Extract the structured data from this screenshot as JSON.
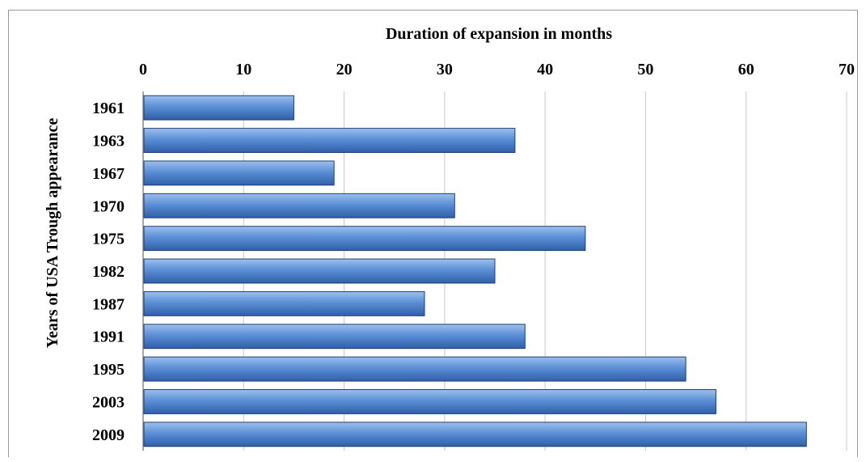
{
  "chart_data": {
    "type": "bar",
    "orientation": "horizontal",
    "title": "",
    "xlabel": "Duration of expansion in months",
    "ylabel": "Years of USA Trough appearance",
    "xaxis_position": "top",
    "categories": [
      "1961",
      "1963",
      "1967",
      "1970",
      "1975",
      "1982",
      "1987",
      "1991",
      "1995",
      "2003",
      "2009"
    ],
    "values": [
      15,
      37,
      19,
      31,
      44,
      35,
      28,
      38,
      54,
      57,
      66
    ],
    "xlim": [
      0,
      70
    ],
    "xticks": [
      0,
      10,
      20,
      30,
      40,
      50,
      60,
      70
    ],
    "grid": true,
    "legend": "none",
    "colors": {
      "bar_fill_top": "#9ec0ec",
      "bar_fill_mid": "#5b8fd6",
      "bar_fill_bottom": "#2f5fa8",
      "bar_stroke": "#1f3f73",
      "grid": "#c8c8c8",
      "frame": "#9a9a9a"
    }
  }
}
